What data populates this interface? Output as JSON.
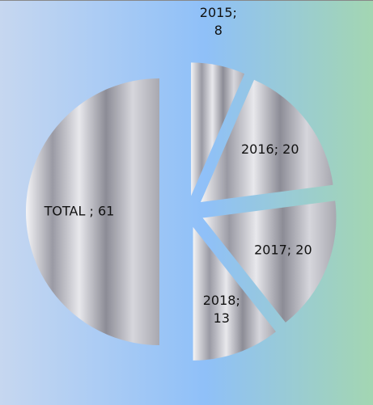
{
  "chart_data": {
    "type": "pie",
    "values": [
      8,
      20,
      20,
      13,
      61
    ],
    "value_labels": [
      "2015; 8",
      "2016; 20",
      "2017; 20",
      "2018; 13",
      "TOTAL ; 61"
    ]
  }
}
